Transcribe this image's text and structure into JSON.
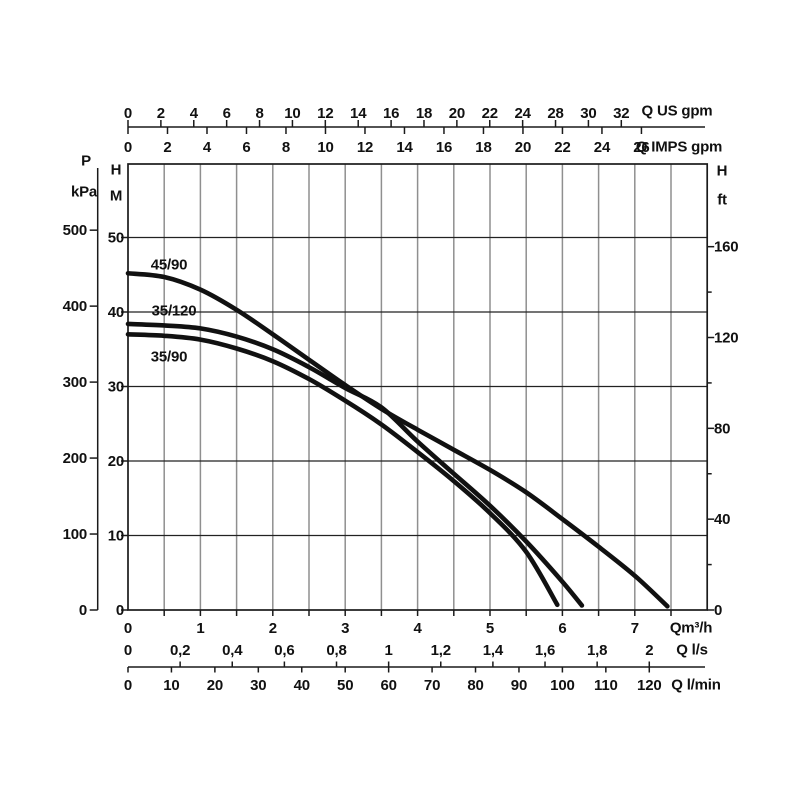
{
  "chart_data": {
    "type": "line",
    "description": "Pump head-capacity performance curves",
    "legend_position": "labels-on-curves",
    "grid": "on",
    "colors": {
      "curve": "#111111",
      "vertical_grid": "#8f8f8f",
      "horizontal_grid": "#222222",
      "axis": "#1a1a1a",
      "text": "#111111"
    },
    "axis_titles": {
      "pressure": "P",
      "pressure_unit": "kPa",
      "head_left": "H",
      "head_left_unit": "M",
      "head_right": "H",
      "head_right_unit": "ft",
      "flow_us": "Q US gpm",
      "flow_imps": "Q IMPS gpm",
      "flow_m3h": "Qm³/h",
      "flow_ls": "Q l/s",
      "flow_lmin": "Q l/min"
    },
    "axes": {
      "us_gpm": {
        "labels": [
          "0",
          "2",
          "4",
          "6",
          "8",
          "10",
          "12",
          "14",
          "16",
          "18",
          "20",
          "22",
          "24",
          "28",
          "30",
          "32"
        ],
        "value_step": 2
      },
      "imps_gpm": {
        "labels": [
          "0",
          "2",
          "4",
          "6",
          "8",
          "10",
          "12",
          "14",
          "16",
          "18",
          "20",
          "22",
          "24",
          "26"
        ],
        "value_step": 2
      },
      "m3h": {
        "labels": [
          "0",
          "1",
          "2",
          "3",
          "4",
          "5",
          "6",
          "7"
        ],
        "value_step": 1,
        "range": [
          0,
          8
        ],
        "grid_step": 0.5
      },
      "ls": {
        "labels": [
          "0",
          "0,2",
          "0,4",
          "0,6",
          "0,8",
          "1",
          "1,2",
          "1,4",
          "1,6",
          "1,8",
          "2"
        ],
        "value_step": 0.2
      },
      "lmin": {
        "labels": [
          "0",
          "10",
          "20",
          "30",
          "40",
          "50",
          "60",
          "70",
          "80",
          "90",
          "100",
          "110",
          "120"
        ],
        "value_step": 10
      },
      "kpa": {
        "labels": [
          "0",
          "100",
          "200",
          "300",
          "400",
          "500"
        ],
        "value_step": 100
      },
      "m": {
        "labels": [
          "0",
          "10",
          "20",
          "30",
          "40",
          "50"
        ],
        "value_step": 10,
        "range": [
          0,
          59.8
        ]
      },
      "ft": {
        "labels": [
          "0",
          "40",
          "80",
          "120",
          "160"
        ],
        "value_step": 40,
        "minor_step": 20
      }
    },
    "series": [
      {
        "name": "45/90",
        "points": [
          [
            0,
            45.2
          ],
          [
            0.5,
            44.7
          ],
          [
            1,
            43.0
          ],
          [
            1.5,
            40.3
          ],
          [
            2,
            37.0
          ],
          [
            2.5,
            33.6
          ],
          [
            3,
            30.2
          ],
          [
            3.5,
            27.0
          ],
          [
            4,
            24.2
          ],
          [
            4.5,
            21.5
          ],
          [
            5,
            18.8
          ],
          [
            5.5,
            15.8
          ],
          [
            6,
            12.2
          ],
          [
            6.5,
            8.5
          ],
          [
            7,
            4.6
          ],
          [
            7.45,
            0.5
          ]
        ]
      },
      {
        "name": "35/120",
        "points": [
          [
            0,
            38.4
          ],
          [
            0.5,
            38.2
          ],
          [
            1,
            37.8
          ],
          [
            1.5,
            36.7
          ],
          [
            2,
            35.0
          ],
          [
            2.5,
            32.6
          ],
          [
            3,
            29.8
          ],
          [
            3.5,
            27.2
          ],
          [
            4,
            22.6
          ],
          [
            4.5,
            18.3
          ],
          [
            5,
            14.0
          ],
          [
            5.5,
            9.2
          ],
          [
            6,
            3.8
          ],
          [
            6.27,
            0.6
          ]
        ]
      },
      {
        "name": "35/90",
        "points": [
          [
            0,
            37.0
          ],
          [
            0.5,
            36.8
          ],
          [
            1,
            36.3
          ],
          [
            1.5,
            35.1
          ],
          [
            2,
            33.4
          ],
          [
            2.5,
            31.0
          ],
          [
            3,
            28.1
          ],
          [
            3.5,
            24.9
          ],
          [
            4,
            21.2
          ],
          [
            4.5,
            17.3
          ],
          [
            5,
            13.0
          ],
          [
            5.5,
            7.8
          ],
          [
            5.93,
            0.7
          ]
        ]
      }
    ]
  }
}
